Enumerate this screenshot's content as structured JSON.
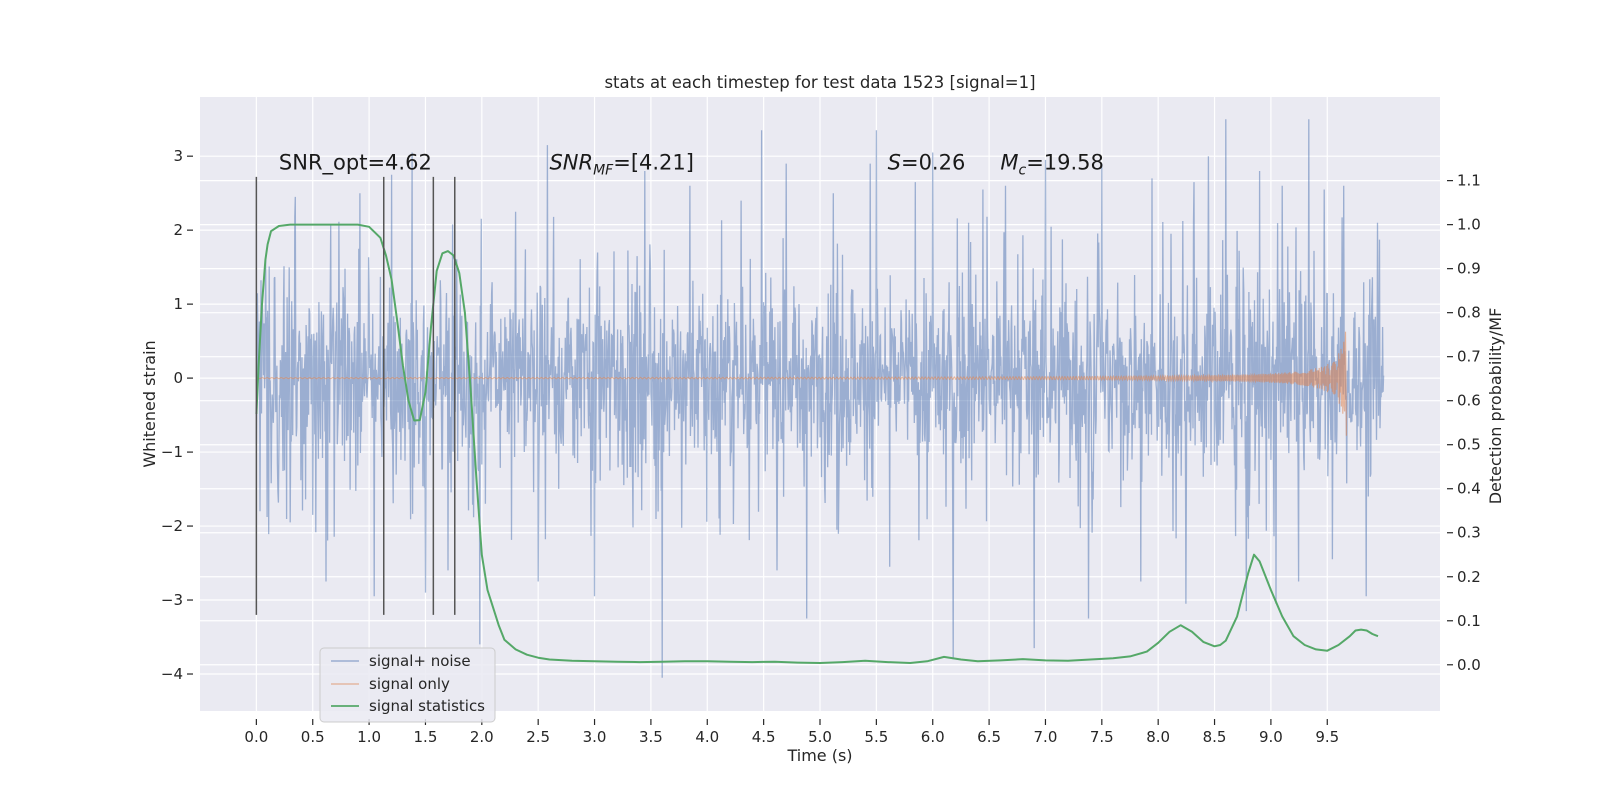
{
  "chart_data": {
    "type": "line",
    "title": "stats at each timestep for test data 1523 [signal=1]",
    "xlabel": "Time (s)",
    "ylabel": "Whitened strain",
    "y2label": "Detection probability/MF",
    "xlim": [
      -0.5,
      10.5
    ],
    "ylim": [
      -4.5,
      3.8
    ],
    "y2lim": [
      -0.105,
      1.29
    ],
    "xticks": [
      0.0,
      0.5,
      1.0,
      1.5,
      2.0,
      2.5,
      3.0,
      3.5,
      4.0,
      4.5,
      5.0,
      5.5,
      6.0,
      6.5,
      7.0,
      7.5,
      8.0,
      8.5,
      9.0,
      9.5
    ],
    "yticks": [
      3,
      2,
      1,
      0,
      -1,
      -2,
      -3,
      -4
    ],
    "ytick_labels": [
      "3",
      "2",
      "1",
      "0",
      "−1",
      "−2",
      "−3",
      "−4"
    ],
    "y2ticks": [
      0.0,
      0.1,
      0.2,
      0.3,
      0.4,
      0.5,
      0.6,
      0.7,
      0.8,
      0.9,
      1.0,
      1.1
    ],
    "grid": true,
    "legend_position": "lower-left",
    "annotations": [
      {
        "pre": "SNR_opt=4.62",
        "sub": "",
        "post": "",
        "x": 0.2,
        "y": 2.82
      },
      {
        "pre": "SNR",
        "sub": "MF",
        "post": "=[4.21]",
        "x": 2.6,
        "y": 2.82
      },
      {
        "pre": "S",
        "sub": "",
        "post": "=0.26",
        "x": 5.6,
        "y": 2.82
      },
      {
        "pre": "M",
        "sub": "c",
        "post": "=19.58",
        "x": 6.6,
        "y": 2.82
      }
    ],
    "vlines": [
      {
        "x": 0.0,
        "ymin": -3.2,
        "ymax": 2.72
      },
      {
        "x": 1.13,
        "ymin": -3.2,
        "ymax": 2.72
      },
      {
        "x": 1.57,
        "ymin": -3.2,
        "ymax": 2.72
      },
      {
        "x": 1.76,
        "ymin": -3.2,
        "ymax": 2.72
      }
    ],
    "series": [
      {
        "name": "signal+ noise",
        "color": "#4c72b0",
        "axis": "left",
        "t_range": [
          0.0,
          10.0
        ],
        "typical_range": [
          -1.55,
          1.55
        ],
        "spikes": [
          [
            0.35,
            2.45
          ],
          [
            0.62,
            -2.75
          ],
          [
            0.92,
            2.5
          ],
          [
            1.05,
            -2.95
          ],
          [
            1.2,
            2.75
          ],
          [
            1.38,
            3.05
          ],
          [
            1.5,
            -2.9
          ],
          [
            1.7,
            -2.6
          ],
          [
            1.98,
            -3.6
          ],
          [
            2.3,
            2.25
          ],
          [
            2.5,
            -2.75
          ],
          [
            2.58,
            3.15
          ],
          [
            3.0,
            -2.95
          ],
          [
            3.45,
            2.8
          ],
          [
            3.6,
            -4.05
          ],
          [
            3.85,
            2.6
          ],
          [
            4.3,
            2.4
          ],
          [
            4.48,
            3.35
          ],
          [
            4.62,
            -2.6
          ],
          [
            4.7,
            2.9
          ],
          [
            4.88,
            -3.25
          ],
          [
            5.12,
            2.5
          ],
          [
            5.45,
            2.9
          ],
          [
            5.5,
            3.35
          ],
          [
            5.62,
            -2.55
          ],
          [
            5.85,
            2.65
          ],
          [
            6.0,
            3.05
          ],
          [
            6.18,
            -3.8
          ],
          [
            6.45,
            2.55
          ],
          [
            6.65,
            2.6
          ],
          [
            6.9,
            -3.65
          ],
          [
            7.0,
            2.95
          ],
          [
            7.38,
            -3.25
          ],
          [
            7.5,
            2.9
          ],
          [
            7.85,
            -2.75
          ],
          [
            7.95,
            2.7
          ],
          [
            8.25,
            -3.05
          ],
          [
            8.32,
            2.65
          ],
          [
            8.45,
            3.0
          ],
          [
            8.6,
            3.5
          ],
          [
            8.78,
            -3.15
          ],
          [
            8.9,
            2.8
          ],
          [
            9.05,
            -3.05
          ],
          [
            9.1,
            2.6
          ],
          [
            9.25,
            -2.75
          ],
          [
            9.34,
            3.5
          ],
          [
            9.47,
            2.55
          ],
          [
            9.55,
            -2.45
          ],
          [
            9.65,
            2.6
          ],
          [
            9.85,
            -2.95
          ],
          [
            9.95,
            2.1
          ]
        ]
      },
      {
        "name": "signal only",
        "color": "#dd8452",
        "axis": "left",
        "t_range": [
          0.0,
          9.67
        ],
        "peak_amplitude": 0.85
      },
      {
        "name": "signal statistics",
        "color": "#55a868",
        "axis": "right",
        "x": [
          0.0,
          0.02,
          0.05,
          0.08,
          0.1,
          0.13,
          0.2,
          0.3,
          0.5,
          0.7,
          0.9,
          1.0,
          1.1,
          1.15,
          1.2,
          1.25,
          1.3,
          1.35,
          1.4,
          1.45,
          1.5,
          1.55,
          1.6,
          1.65,
          1.7,
          1.75,
          1.8,
          1.85,
          1.9,
          1.95,
          2.0,
          2.05,
          2.1,
          2.15,
          2.2,
          2.3,
          2.4,
          2.5,
          2.6,
          2.8,
          3.0,
          3.2,
          3.4,
          3.6,
          3.8,
          4.0,
          4.2,
          4.4,
          4.6,
          4.8,
          5.0,
          5.2,
          5.4,
          5.6,
          5.8,
          5.95,
          6.1,
          6.25,
          6.4,
          6.6,
          6.8,
          7.0,
          7.2,
          7.4,
          7.6,
          7.75,
          7.9,
          8.0,
          8.1,
          8.2,
          8.3,
          8.4,
          8.5,
          8.55,
          8.6,
          8.7,
          8.8,
          8.85,
          8.9,
          9.0,
          9.1,
          9.2,
          9.3,
          9.4,
          9.5,
          9.6,
          9.7,
          9.75,
          9.8,
          9.85,
          9.9,
          9.95
        ],
        "values": [
          0.57,
          0.68,
          0.82,
          0.92,
          0.955,
          0.985,
          0.997,
          1.0,
          1.0,
          1.0,
          1.0,
          0.995,
          0.97,
          0.93,
          0.875,
          0.78,
          0.68,
          0.6,
          0.555,
          0.556,
          0.62,
          0.77,
          0.895,
          0.935,
          0.94,
          0.93,
          0.89,
          0.8,
          0.63,
          0.43,
          0.25,
          0.17,
          0.13,
          0.09,
          0.057,
          0.035,
          0.023,
          0.016,
          0.012,
          0.009,
          0.008,
          0.007,
          0.006,
          0.007,
          0.008,
          0.008,
          0.007,
          0.006,
          0.007,
          0.005,
          0.004,
          0.006,
          0.009,
          0.006,
          0.004,
          0.008,
          0.018,
          0.012,
          0.008,
          0.01,
          0.013,
          0.01,
          0.009,
          0.012,
          0.015,
          0.019,
          0.03,
          0.05,
          0.075,
          0.09,
          0.075,
          0.052,
          0.042,
          0.045,
          0.055,
          0.11,
          0.21,
          0.25,
          0.235,
          0.17,
          0.11,
          0.065,
          0.045,
          0.035,
          0.032,
          0.045,
          0.065,
          0.078,
          0.08,
          0.078,
          0.07,
          0.065
        ]
      }
    ]
  }
}
